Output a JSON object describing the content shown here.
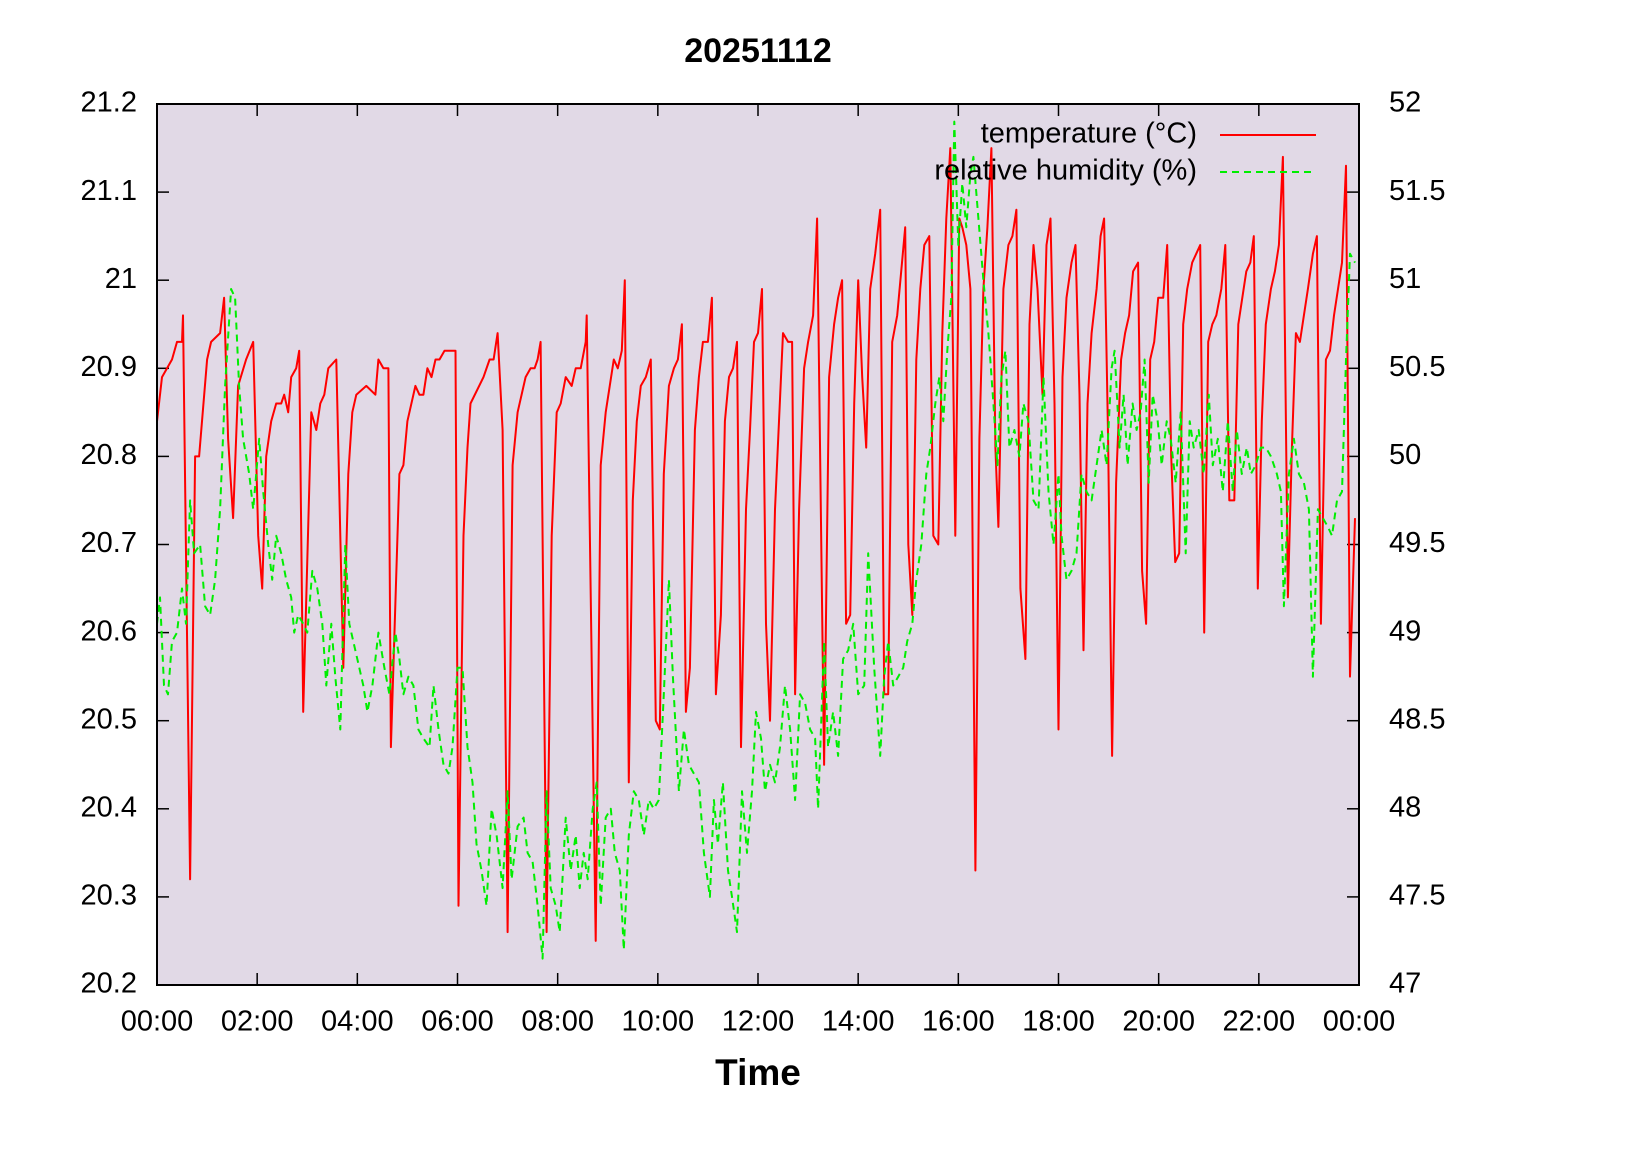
{
  "chart_data": {
    "type": "line",
    "title": "20251112",
    "xlabel": "Time",
    "xlim": [
      0,
      24
    ],
    "xticks": [
      {
        "value": 0,
        "label": "00:00"
      },
      {
        "value": 2,
        "label": "02:00"
      },
      {
        "value": 4,
        "label": "04:00"
      },
      {
        "value": 6,
        "label": "06:00"
      },
      {
        "value": 8,
        "label": "08:00"
      },
      {
        "value": 10,
        "label": "10:00"
      },
      {
        "value": 12,
        "label": "12:00"
      },
      {
        "value": 14,
        "label": "14:00"
      },
      {
        "value": 16,
        "label": "16:00"
      },
      {
        "value": 18,
        "label": "18:00"
      },
      {
        "value": 20,
        "label": "20:00"
      },
      {
        "value": 22,
        "label": "22:00"
      },
      {
        "value": 24,
        "label": "00:00"
      }
    ],
    "ylim": [
      20.2,
      21.2
    ],
    "yticks": [
      20.2,
      20.3,
      20.4,
      20.5,
      20.6,
      20.7,
      20.8,
      20.9,
      21,
      21.1,
      21.2
    ],
    "y2lim": [
      47,
      52
    ],
    "y2ticks": [
      47,
      47.5,
      48,
      48.5,
      49,
      49.5,
      50,
      50.5,
      51,
      51.5,
      52
    ],
    "legend": "top-right",
    "background": "#e1d9e6",
    "series": [
      {
        "name": "temperature (°C)",
        "color": "#ff0000",
        "dash": "solid",
        "axis": "y",
        "x": [
          0,
          0.1,
          0.3,
          0.4,
          0.5,
          0.52,
          0.66,
          0.76,
          0.84,
          1,
          1.08,
          1.26,
          1.34,
          1.42,
          1.52,
          1.62,
          1.78,
          1.92,
          2.02,
          2.1,
          2.18,
          2.28,
          2.38,
          2.48,
          2.54,
          2.62,
          2.68,
          2.78,
          2.84,
          2.92,
          3.08,
          3.18,
          3.26,
          3.34,
          3.42,
          3.58,
          3.72,
          3.82,
          3.9,
          3.98,
          4.18,
          4.36,
          4.42,
          4.52,
          4.62,
          4.67,
          4.84,
          4.92,
          5,
          5.16,
          5.24,
          5.32,
          5.4,
          5.48,
          5.56,
          5.64,
          5.74,
          5.96,
          6.02,
          6.12,
          6.2,
          6.26,
          6.52,
          6.64,
          6.72,
          6.8,
          6.9,
          7,
          7.1,
          7.2,
          7.36,
          7.46,
          7.54,
          7.6,
          7.66,
          7.78,
          7.88,
          7.98,
          8.06,
          8.16,
          8.28,
          8.36,
          8.46,
          8.56,
          8.58,
          8.76,
          8.86,
          8.96,
          9.12,
          9.2,
          9.28,
          9.34,
          9.42,
          9.5,
          9.58,
          9.66,
          9.76,
          9.86,
          9.96,
          10.04,
          10.12,
          10.22,
          10.32,
          10.4,
          10.48,
          10.56,
          10.64,
          10.74,
          10.82,
          10.9,
          11,
          11.08,
          11.16,
          11.26,
          11.34,
          11.42,
          11.5,
          11.58,
          11.66,
          11.76,
          11.84,
          11.92,
          12,
          12.08,
          12.16,
          12.24,
          12.34,
          12.42,
          12.5,
          12.6,
          12.68,
          12.74,
          12.82,
          12.92,
          13,
          13.1,
          13.18,
          13.32,
          13.42,
          13.52,
          13.6,
          13.68,
          13.76,
          13.84,
          13.92,
          14,
          14.08,
          14.16,
          14.24,
          14.34,
          14.44,
          14.52,
          14.6,
          14.68,
          14.78,
          14.86,
          14.94,
          15,
          15.08,
          15.16,
          15.24,
          15.32,
          15.42,
          15.5,
          15.6,
          15.68,
          15.76,
          15.84,
          15.94,
          16.02,
          16.08,
          16.16,
          16.24,
          16.34,
          16.42,
          16.5,
          16.58,
          16.66,
          16.74,
          16.8,
          16.9,
          17,
          17.08,
          17.16,
          17.24,
          17.34,
          17.42,
          17.5,
          17.58,
          17.68,
          17.76,
          17.84,
          17.92,
          18,
          18.08,
          18.16,
          18.26,
          18.34,
          18.42,
          18.5,
          18.58,
          18.66,
          18.76,
          18.84,
          18.91,
          18.99,
          19.07,
          19.15,
          19.25,
          19.33,
          19.41,
          19.49,
          19.59,
          19.67,
          19.75,
          19.83,
          19.91,
          19.99,
          20.09,
          20.17,
          20.25,
          20.33,
          20.41,
          20.49,
          20.57,
          20.67,
          20.75,
          20.83,
          20.91,
          20.99,
          21.07,
          21.15,
          21.25,
          21.33,
          21.41,
          21.51,
          21.59,
          21.67,
          21.75,
          21.83,
          21.9,
          21.98,
          22.06,
          22.14,
          22.24,
          22.32,
          22.4,
          22.48,
          22.58,
          22.66,
          22.74,
          22.82,
          22.9,
          22.98,
          23.08,
          23.16,
          23.24,
          23.34,
          23.42,
          23.5,
          23.58,
          23.66,
          23.74,
          23.82,
          23.92
        ],
        "values": [
          20.84,
          20.89,
          20.91,
          20.93,
          20.93,
          20.96,
          20.32,
          20.8,
          20.8,
          20.91,
          20.93,
          20.94,
          20.98,
          20.82,
          20.73,
          20.88,
          20.91,
          20.93,
          20.71,
          20.65,
          20.8,
          20.84,
          20.86,
          20.86,
          20.87,
          20.85,
          20.89,
          20.9,
          20.92,
          20.51,
          20.85,
          20.83,
          20.86,
          20.87,
          20.9,
          20.91,
          20.56,
          20.78,
          20.85,
          20.87,
          20.88,
          20.87,
          20.91,
          20.9,
          20.9,
          20.47,
          20.78,
          20.79,
          20.84,
          20.88,
          20.87,
          20.87,
          20.9,
          20.89,
          20.91,
          20.91,
          20.92,
          20.92,
          20.29,
          20.71,
          20.81,
          20.86,
          20.89,
          20.91,
          20.91,
          20.94,
          20.83,
          20.26,
          20.79,
          20.85,
          20.89,
          20.9,
          20.9,
          20.91,
          20.93,
          20.26,
          20.71,
          20.85,
          20.86,
          20.89,
          20.88,
          20.9,
          20.9,
          20.93,
          20.96,
          20.25,
          20.79,
          20.85,
          20.91,
          20.9,
          20.92,
          21,
          20.43,
          20.75,
          20.84,
          20.88,
          20.89,
          20.91,
          20.5,
          20.49,
          20.78,
          20.88,
          20.9,
          20.91,
          20.95,
          20.51,
          20.56,
          20.83,
          20.89,
          20.93,
          20.93,
          20.98,
          20.53,
          20.62,
          20.84,
          20.89,
          20.9,
          20.93,
          20.47,
          20.74,
          20.83,
          20.93,
          20.94,
          20.99,
          20.61,
          20.5,
          20.74,
          20.84,
          20.94,
          20.93,
          20.93,
          20.53,
          20.74,
          20.9,
          20.93,
          20.96,
          21.07,
          20.45,
          20.89,
          20.95,
          20.98,
          21,
          20.61,
          20.62,
          20.86,
          21,
          20.89,
          20.81,
          20.99,
          21.03,
          21.08,
          20.53,
          20.53,
          20.93,
          20.96,
          21.01,
          21.06,
          20.7,
          20.62,
          20.91,
          20.99,
          21.04,
          21.05,
          20.71,
          20.7,
          20.94,
          21.07,
          21.15,
          20.71,
          21.07,
          21.06,
          21.04,
          20.99,
          20.33,
          20.82,
          20.99,
          21.06,
          21.15,
          20.81,
          20.72,
          20.99,
          21.04,
          21.05,
          21.08,
          20.65,
          20.57,
          20.95,
          21.04,
          20.99,
          20.87,
          21.04,
          21.07,
          20.86,
          20.49,
          20.89,
          20.98,
          21.02,
          21.04,
          20.87,
          20.58,
          20.86,
          20.94,
          20.99,
          21.05,
          21.07,
          20.82,
          20.46,
          20.77,
          20.91,
          20.94,
          20.96,
          21.01,
          21.02,
          20.67,
          20.61,
          20.91,
          20.93,
          20.98,
          20.98,
          21.04,
          20.8,
          20.68,
          20.69,
          20.95,
          20.99,
          21.02,
          21.03,
          21.04,
          20.6,
          20.93,
          20.95,
          20.96,
          20.99,
          21.04,
          20.75,
          20.75,
          20.95,
          20.98,
          21.01,
          21.02,
          21.05,
          20.65,
          20.84,
          20.95,
          20.99,
          21.01,
          21.04,
          21.14,
          20.64,
          20.81,
          20.94,
          20.93,
          20.96,
          20.99,
          21.03,
          21.05,
          20.61,
          20.91,
          20.92,
          20.96,
          20.99,
          21.02,
          21.13,
          20.55,
          20.73
        ]
      },
      {
        "name": "relative humidity (%)",
        "color": "#00ee00",
        "dash": "dashed",
        "axis": "y2",
        "x": [
          0,
          0.06,
          0.14,
          0.22,
          0.3,
          0.4,
          0.5,
          0.58,
          0.66,
          0.74,
          0.86,
          0.96,
          1.06,
          1.16,
          1.26,
          1.36,
          1.48,
          1.56,
          1.64,
          1.72,
          1.84,
          1.92,
          2.04,
          2.12,
          2.22,
          2.3,
          2.38,
          2.48,
          2.58,
          2.68,
          2.74,
          2.82,
          2.92,
          3,
          3.1,
          3.2,
          3.3,
          3.38,
          3.48,
          3.56,
          3.66,
          3.76,
          3.84,
          3.96,
          4.04,
          4.12,
          4.2,
          4.3,
          4.42,
          4.54,
          4.64,
          4.76,
          4.84,
          4.92,
          5.02,
          5.12,
          5.22,
          5.32,
          5.44,
          5.52,
          5.62,
          5.72,
          5.82,
          5.9,
          6,
          6.1,
          6.2,
          6.3,
          6.38,
          6.48,
          6.58,
          6.68,
          6.78,
          6.9,
          7,
          7.08,
          7.2,
          7.32,
          7.4,
          7.5,
          7.6,
          7.7,
          7.78,
          7.86,
          7.96,
          8.04,
          8.16,
          8.26,
          8.36,
          8.44,
          8.52,
          8.6,
          8.7,
          8.78,
          8.86,
          8.96,
          9.06,
          9.14,
          9.24,
          9.32,
          9.42,
          9.52,
          9.62,
          9.72,
          9.82,
          9.92,
          10.02,
          10.12,
          10.22,
          10.3,
          10.42,
          10.52,
          10.62,
          10.72,
          10.82,
          10.92,
          11.04,
          11.12,
          11.2,
          11.3,
          11.4,
          11.48,
          11.58,
          11.68,
          11.78,
          11.88,
          11.96,
          12.06,
          12.14,
          12.24,
          12.34,
          12.44,
          12.54,
          12.64,
          12.74,
          12.84,
          12.94,
          13.04,
          13.14,
          13.2,
          13.32,
          13.4,
          13.5,
          13.6,
          13.7,
          13.8,
          13.9,
          14,
          14.12,
          14.2,
          14.32,
          14.44,
          14.52,
          14.6,
          14.7,
          14.8,
          14.9,
          14.98,
          15.08,
          15.16,
          15.26,
          15.36,
          15.44,
          15.54,
          15.62,
          15.7,
          15.78,
          15.86,
          15.92,
          16,
          16.08,
          16.16,
          16.24,
          16.3,
          16.4,
          16.5,
          16.6,
          16.7,
          16.78,
          16.86,
          16.94,
          17.02,
          17.12,
          17.22,
          17.3,
          17.4,
          17.5,
          17.6,
          17.7,
          17.8,
          17.9,
          18,
          18.06,
          18.16,
          18.26,
          18.36,
          18.46,
          18.56,
          18.66,
          18.76,
          18.86,
          18.96,
          19.06,
          19.12,
          19.22,
          19.3,
          19.38,
          19.48,
          19.56,
          19.64,
          19.72,
          19.8,
          19.88,
          19.98,
          20.06,
          20.16,
          20.24,
          20.34,
          20.44,
          20.54,
          20.62,
          20.7,
          20.8,
          20.9,
          21,
          21.08,
          21.18,
          21.28,
          21.38,
          21.48,
          21.56,
          21.66,
          21.76,
          21.84,
          21.94,
          22.04,
          22.14,
          22.24,
          22.36,
          22.44,
          22.5,
          22.6,
          22.7,
          22.8,
          22.9,
          23,
          23.08,
          23.18,
          23.28,
          23.38,
          23.46,
          23.56,
          23.66,
          23.74,
          23.82,
          23.92
        ],
        "values": [
          49.05,
          49.2,
          48.7,
          48.65,
          48.95,
          49,
          49.25,
          49.05,
          49.75,
          49.45,
          49.5,
          49.15,
          49.1,
          49.3,
          49.7,
          50.4,
          50.95,
          50.9,
          50.4,
          50.1,
          49.9,
          49.7,
          50.1,
          49.8,
          49.5,
          49.3,
          49.55,
          49.45,
          49.3,
          49.2,
          49,
          49.1,
          49.05,
          49,
          49.35,
          49.25,
          49.05,
          48.7,
          49.05,
          48.75,
          48.45,
          49.5,
          49.05,
          48.9,
          48.8,
          48.7,
          48.55,
          48.7,
          49,
          48.8,
          48.65,
          49,
          48.85,
          48.65,
          48.75,
          48.7,
          48.45,
          48.4,
          48.35,
          48.7,
          48.45,
          48.25,
          48.2,
          48.35,
          48.8,
          48.8,
          48.35,
          48.15,
          47.8,
          47.65,
          47.45,
          48,
          47.85,
          47.55,
          48.1,
          47.6,
          47.9,
          47.95,
          47.75,
          47.7,
          47.45,
          47.15,
          48.1,
          47.55,
          47.45,
          47.3,
          47.95,
          47.65,
          47.85,
          47.55,
          47.75,
          47.6,
          48,
          48.15,
          47.45,
          47.95,
          48,
          47.75,
          47.65,
          47.2,
          47.85,
          48.1,
          48.05,
          47.85,
          48.05,
          48,
          48.05,
          48.65,
          49.3,
          48.75,
          48.1,
          48.45,
          48.25,
          48.2,
          48.15,
          47.75,
          47.5,
          48.05,
          47.8,
          48.15,
          47.65,
          47.5,
          47.3,
          48.1,
          47.75,
          48.1,
          48.55,
          48.4,
          48.1,
          48.25,
          48.15,
          48.35,
          48.7,
          48.45,
          48.05,
          48.65,
          48.6,
          48.45,
          48.4,
          48,
          48.95,
          48.35,
          48.55,
          48.3,
          48.85,
          48.9,
          49.05,
          48.65,
          48.7,
          49.45,
          48.8,
          48.3,
          48.75,
          48.95,
          48.7,
          48.75,
          48.8,
          48.95,
          49.05,
          49.3,
          49.5,
          49.9,
          50.05,
          50.3,
          50.45,
          50.2,
          50.6,
          50.9,
          51.9,
          51.2,
          51.55,
          51.3,
          51.6,
          51.7,
          51.35,
          51,
          50.7,
          50.3,
          49.95,
          50.45,
          50.6,
          50.05,
          50.15,
          50,
          50.3,
          50.2,
          49.75,
          49.7,
          50.45,
          49.8,
          49.5,
          49.9,
          49.55,
          49.3,
          49.35,
          49.45,
          49.9,
          49.8,
          49.75,
          49.95,
          50.15,
          49.95,
          50.5,
          50.6,
          50.05,
          50.35,
          49.95,
          50.3,
          50.15,
          50.25,
          50.55,
          49.85,
          50.35,
          50.2,
          49.95,
          50.2,
          50.1,
          49.85,
          50.25,
          49.45,
          50.2,
          50.05,
          50.15,
          49.9,
          50.35,
          49.95,
          50.1,
          49.8,
          50.2,
          49.8,
          50.15,
          49.9,
          50.05,
          49.9,
          49.95,
          50.05,
          50.05,
          50,
          49.9,
          49.8,
          49.15,
          49.9,
          50.1,
          49.9,
          49.85,
          49.7,
          48.75,
          49.7,
          49.65,
          49.6,
          49.55,
          49.75,
          49.8,
          50.55,
          51.15,
          51.1
        ]
      }
    ]
  }
}
